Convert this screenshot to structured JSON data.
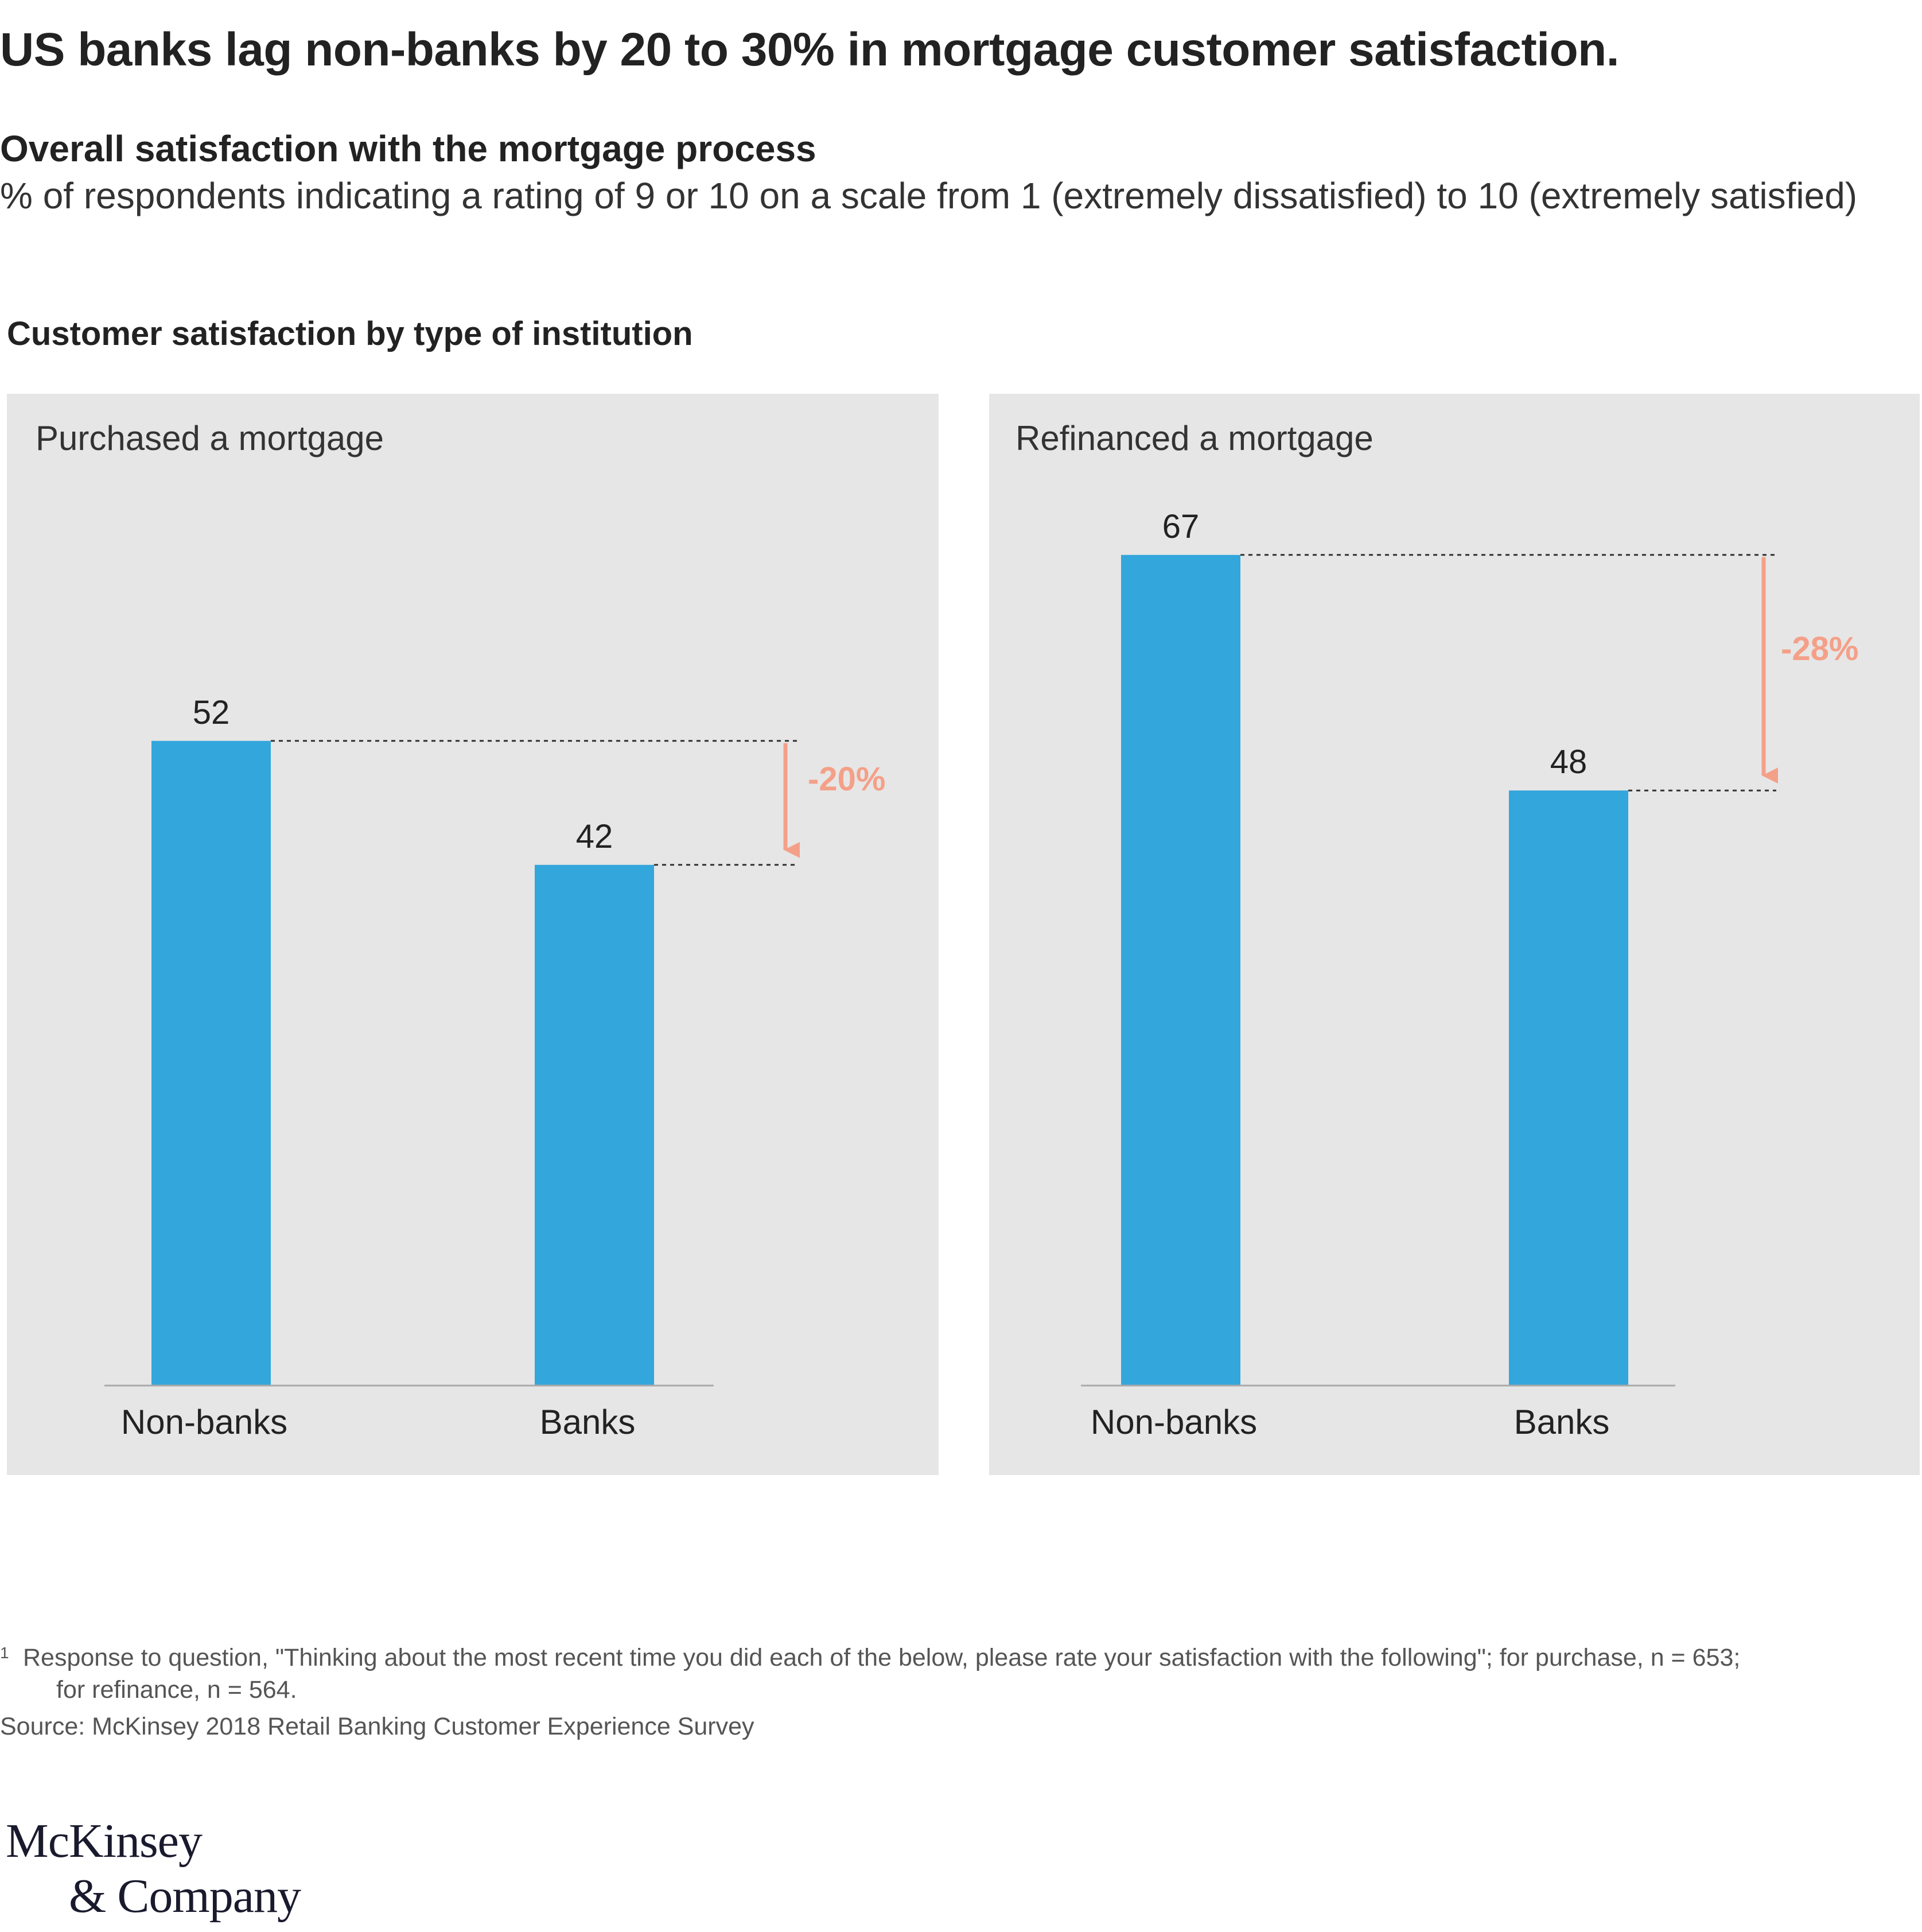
{
  "title": "US banks lag non-banks by 20 to 30% in mortgage customer satisfaction.",
  "subtitle": "Overall satisfaction with the mortgage process",
  "description": "% of respondents indicating a rating of 9 or 10 on a scale from 1 (extremely dissatisfied) to 10 (extremely satisfied)",
  "section_label": "Customer satisfaction by type of institution",
  "colors": {
    "bar": "#33a6dc",
    "delta": "#f4a088",
    "panel": "#e6e6e6"
  },
  "chart_data": [
    {
      "type": "bar",
      "panel_title": "Purchased a mortgage",
      "categories": [
        "Non-banks",
        "Banks"
      ],
      "values": [
        52,
        42
      ],
      "value_labels": [
        "52",
        "42"
      ],
      "delta_label": "-20%",
      "ylim": [
        0,
        100
      ]
    },
    {
      "type": "bar",
      "panel_title": "Refinanced a mortgage",
      "categories": [
        "Non-banks",
        "Banks"
      ],
      "values": [
        67,
        48
      ],
      "value_labels": [
        "67",
        "48"
      ],
      "delta_label": "-28%",
      "ylim": [
        0,
        100
      ]
    }
  ],
  "footnote": {
    "marker": "1",
    "line1": "Response to question, \"Thinking about the most recent time you did each of the below, please rate your satisfaction with the following\"; for purchase, n = 653;",
    "line2": "for refinance, n = 564."
  },
  "source": "Source: McKinsey 2018 Retail Banking Customer Experience Survey",
  "logo": {
    "line1": "McKinsey",
    "line2": "& Company"
  }
}
